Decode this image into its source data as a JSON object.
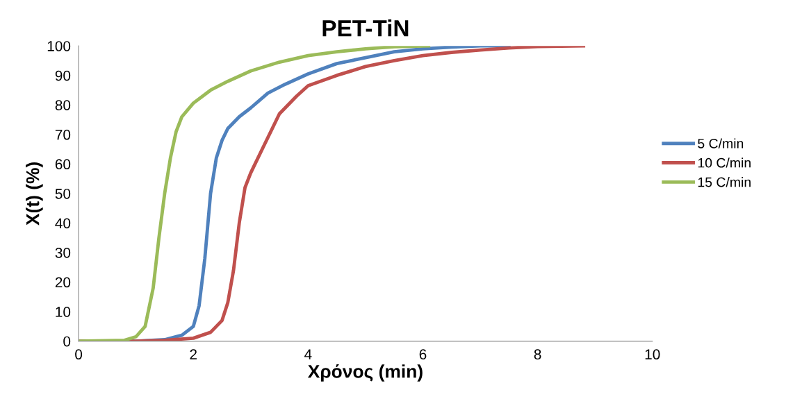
{
  "chart_data": {
    "type": "line",
    "title": "PET-TiN",
    "xlabel": "Χρόνος (min)",
    "ylabel": "X(t) (%)",
    "xlim": [
      0,
      10
    ],
    "xticks": [
      0,
      2,
      4,
      6,
      8,
      10
    ],
    "ylim": [
      0,
      100
    ],
    "yticks": [
      0,
      10,
      20,
      30,
      40,
      50,
      60,
      70,
      80,
      90,
      100
    ],
    "grid": false,
    "legend": "right",
    "marker": "none",
    "line_style": "solid",
    "series": [
      {
        "name": "5 C/min",
        "color": "#4f81bd",
        "x": [
          0,
          1,
          1.5,
          1.8,
          2.0,
          2.1,
          2.2,
          2.3,
          2.4,
          2.5,
          2.6,
          2.7,
          2.8,
          3.0,
          3.3,
          3.6,
          4.0,
          4.5,
          5.0,
          5.5,
          6.0,
          6.5,
          7.0,
          7.5
        ],
        "values": [
          0,
          0,
          0.5,
          2,
          5,
          12,
          28,
          50,
          62,
          68,
          72,
          74,
          76,
          79,
          84,
          87,
          90.5,
          94,
          96,
          98,
          99,
          99.6,
          100,
          100
        ]
      },
      {
        "name": "10 C/min",
        "color": "#c0504d",
        "x": [
          0,
          1,
          1.5,
          2.0,
          2.3,
          2.5,
          2.6,
          2.7,
          2.8,
          2.9,
          3.0,
          3.2,
          3.5,
          3.8,
          4.0,
          4.5,
          5.0,
          5.5,
          6.0,
          6.5,
          7.0,
          7.5,
          8.0,
          8.8
        ],
        "values": [
          0,
          0,
          0.3,
          1,
          3,
          7,
          13,
          24,
          40,
          52,
          57,
          65,
          77,
          83,
          86.5,
          90,
          93,
          95,
          96.7,
          97.8,
          98.6,
          99.3,
          99.8,
          100
        ]
      },
      {
        "name": "15 C/min",
        "color": "#9bbb59",
        "x": [
          0,
          0.8,
          1.0,
          1.16,
          1.3,
          1.4,
          1.5,
          1.6,
          1.7,
          1.8,
          2.0,
          2.3,
          2.6,
          3.0,
          3.5,
          4.0,
          4.5,
          5.0,
          5.5,
          6.1
        ],
        "values": [
          0,
          0.3,
          1.5,
          5,
          18,
          35,
          50,
          62,
          71,
          76,
          80.6,
          85,
          88,
          91.5,
          94.5,
          96.7,
          98,
          99,
          99.7,
          100
        ]
      }
    ]
  }
}
